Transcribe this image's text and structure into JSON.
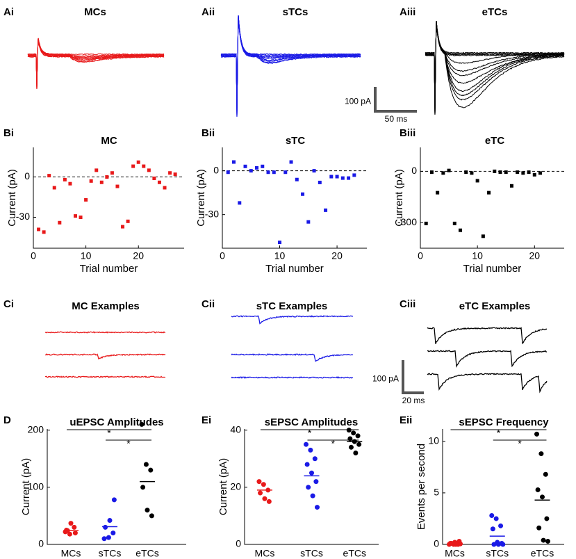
{
  "chart_data": [
    {
      "type": "traces",
      "label": "Ai",
      "title": "MCs",
      "color": "#e8191a"
    },
    {
      "type": "traces",
      "label": "Aii",
      "title": "sTCs",
      "color": "#1a1ae6"
    },
    {
      "type": "traces",
      "label": "Aiii",
      "title": "eTCs",
      "color": "#000000",
      "scalebar": {
        "y_label": "100 pA",
        "x_label": "50 ms"
      }
    },
    {
      "type": "scatter",
      "label": "Bi",
      "title": "MC",
      "color": "#e8191a",
      "xlabel": "Trial number",
      "ylabel": "Current (pA)",
      "x": [
        1,
        2,
        3,
        4,
        5,
        6,
        7,
        8,
        9,
        10,
        11,
        12,
        13,
        14,
        15,
        16,
        17,
        18,
        19,
        20,
        21,
        22,
        23,
        24,
        25,
        26,
        27
      ],
      "values": [
        -39,
        -41,
        1,
        -8,
        -34,
        -2,
        -5,
        -29,
        -30,
        -17,
        -3,
        5,
        -4,
        0,
        3,
        -7,
        -37,
        -33,
        8,
        11,
        8,
        5,
        -1,
        -4,
        -8,
        3,
        2
      ],
      "xlim": [
        0,
        28.7
      ],
      "ylim": [
        -53,
        22
      ],
      "xticks": [
        0,
        10,
        20
      ],
      "yticks": [
        -30,
        0
      ],
      "hline": 0
    },
    {
      "type": "scatter",
      "label": "Bii",
      "title": "sTC",
      "color": "#1a1ae6",
      "xlabel": "Trial number",
      "ylabel": "Current (pA)",
      "x": [
        1,
        2,
        3,
        4,
        5,
        6,
        7,
        8,
        9,
        10,
        11,
        12,
        13,
        14,
        15,
        16,
        17,
        18,
        19,
        20,
        21,
        22,
        23
      ],
      "values": [
        -1,
        6,
        -22,
        3,
        0,
        2,
        3,
        -1,
        -1,
        -49,
        -1,
        6,
        -6,
        -16,
        -35,
        0,
        -8,
        -27,
        -4,
        -4,
        -5,
        -5,
        -3
      ],
      "xlim": [
        0,
        25.2
      ],
      "ylim": [
        -53,
        16
      ],
      "xticks": [
        0,
        10,
        20
      ],
      "yticks": [
        -30,
        0
      ],
      "hline": 0
    },
    {
      "type": "scatter",
      "label": "Biii",
      "title": "eTC",
      "color": "#000000",
      "xlabel": "Trial number",
      "ylabel": "Current (pA)",
      "x": [
        1,
        2,
        3,
        4,
        5,
        6,
        7,
        8,
        9,
        10,
        11,
        12,
        13,
        14,
        15,
        16,
        17,
        18,
        19,
        20,
        21
      ],
      "values": [
        -305,
        -5,
        -125,
        -10,
        5,
        -305,
        -345,
        -5,
        -10,
        -55,
        -380,
        -125,
        0,
        -5,
        -5,
        -85,
        -5,
        -10,
        -5,
        -20,
        -10
      ],
      "xlim": [
        0,
        25.2
      ],
      "ylim": [
        -450,
        140
      ],
      "xticks": [
        0,
        10,
        20
      ],
      "yticks": [
        -300,
        0
      ],
      "hline": 0
    },
    {
      "type": "examples",
      "label": "Ci",
      "title": "MC Examples",
      "color": "#e8191a"
    },
    {
      "type": "examples",
      "label": "Cii",
      "title": "sTC Examples",
      "color": "#1a1ae6"
    },
    {
      "type": "examples",
      "label": "Ciii",
      "title": "eTC Examples",
      "color": "#000000",
      "scalebar": {
        "y_label": "100 pA",
        "x_label": "20 ms"
      }
    },
    {
      "type": "strip",
      "label": "D",
      "title": "uEPSC Amplitudes",
      "ylabel": "Current (pA)",
      "categories": [
        "MCs",
        "sTCs",
        "eTCs"
      ],
      "colors": [
        "#e8191a",
        "#1a1ae6",
        "#000000"
      ],
      "series": [
        {
          "values": [
            22,
            18,
            30,
            25,
            37,
            20,
            24
          ]
        },
        {
          "values": [
            10,
            12,
            20,
            30,
            42,
            78
          ]
        },
        {
          "values": [
            210,
            140,
            130,
            100,
            60,
            50
          ]
        }
      ],
      "means": [
        24,
        31,
        110
      ],
      "ylim": [
        0,
        202
      ],
      "yticks": [
        0,
        100,
        200
      ],
      "significance": [
        {
          "categories": [
            0,
            2
          ],
          "label": "*"
        },
        {
          "categories": [
            1,
            2
          ],
          "label": "*"
        }
      ]
    },
    {
      "type": "strip",
      "label": "Ei",
      "title": "sEPSC Amplitudes",
      "ylabel": "Current (pA)",
      "categories": [
        "MCs",
        "sTCs",
        "eTCs"
      ],
      "colors": [
        "#e8191a",
        "#1a1ae6",
        "#000000"
      ],
      "series": [
        {
          "values": [
            22,
            21,
            19,
            18,
            16,
            15
          ]
        },
        {
          "values": [
            35,
            33,
            30,
            28,
            25,
            22,
            20,
            17,
            13
          ]
        },
        {
          "values": [
            40,
            39,
            38,
            37,
            36,
            35,
            34,
            32
          ]
        }
      ],
      "means": [
        19,
        24,
        36
      ],
      "ylim": [
        0,
        40.4
      ],
      "yticks": [
        0,
        20,
        40
      ],
      "significance": [
        {
          "categories": [
            0,
            2
          ],
          "label": "*"
        },
        {
          "categories": [
            1,
            2
          ],
          "label": "*"
        }
      ]
    },
    {
      "type": "strip",
      "label": "Eii",
      "title": "sEPSC Frequency",
      "ylabel": "Events per second",
      "categories": [
        "MCs",
        "sTCs",
        "eTCs"
      ],
      "colors": [
        "#e8191a",
        "#1a1ae6",
        "#000000"
      ],
      "series": [
        {
          "values": [
            0,
            0,
            0,
            0.1,
            0.2,
            0.3,
            0.1,
            0,
            0.05
          ]
        },
        {
          "values": [
            2.8,
            2.5,
            1.8,
            1.5,
            0.2,
            0.1,
            0,
            0,
            0
          ]
        },
        {
          "values": [
            10.7,
            8.8,
            6.8,
            5.3,
            4.6,
            2.5,
            1.6,
            0.4,
            0.3
          ]
        }
      ],
      "means": [
        0.1,
        0.8,
        4.3
      ],
      "ylim": [
        0,
        11.2
      ],
      "yticks": [
        0,
        5,
        10
      ],
      "significance": [
        {
          "categories": [
            0,
            2
          ],
          "label": "*"
        },
        {
          "categories": [
            1,
            2
          ],
          "label": "*"
        }
      ]
    }
  ]
}
